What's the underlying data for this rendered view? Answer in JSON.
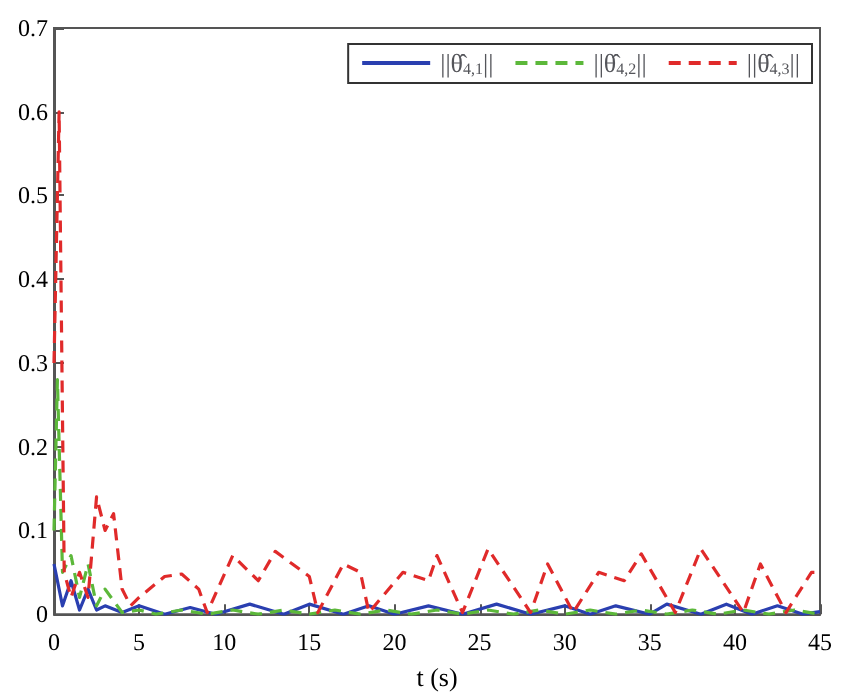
{
  "chart_data": {
    "type": "line",
    "xlabel": "t (s)",
    "xlim": [
      0,
      45
    ],
    "xticks": [
      0,
      5,
      10,
      15,
      20,
      25,
      30,
      35,
      40,
      45
    ],
    "ylim": [
      0,
      0.7
    ],
    "yticks": [
      0,
      0.1,
      0.2,
      0.3,
      0.4,
      0.5,
      0.6,
      0.7
    ],
    "grid": false,
    "legend": "top right",
    "marker": "none",
    "series": [
      {
        "name": "||θ̂$_{4,1}$||",
        "color": "#2a3fb0",
        "line_style": "solid",
        "x": [
          0,
          0.5,
          1,
          1.5,
          2,
          2.5,
          3,
          4,
          5,
          6.5,
          8,
          9.5,
          11.5,
          13.5,
          15,
          17,
          18.5,
          20,
          22,
          24,
          26,
          28,
          30,
          31.5,
          33,
          35,
          36,
          38,
          39.5,
          41,
          42.5,
          44,
          45
        ],
        "values": [
          0.06,
          0.01,
          0.04,
          0.005,
          0.03,
          0.005,
          0.01,
          0.002,
          0.01,
          0,
          0.008,
          0,
          0.012,
          0,
          0.012,
          0,
          0.01,
          0,
          0.01,
          0,
          0.012,
          0,
          0.01,
          0,
          0.01,
          0,
          0.012,
          0,
          0.012,
          0,
          0.01,
          0,
          0.003
        ]
      },
      {
        "name": "||θ̂$_{4,2}$||",
        "color": "#5cb83a",
        "line_style": "dashed",
        "x": [
          0,
          0.2,
          0.5,
          1,
          1.5,
          2,
          2.5,
          3,
          4,
          5,
          6,
          7.5,
          9,
          10.5,
          12,
          13.5,
          15,
          16.5,
          18,
          19.5,
          21,
          22.5,
          24,
          25.5,
          27,
          28.5,
          30,
          31.5,
          33,
          34.5,
          36,
          37.5,
          39,
          40.5,
          42,
          43.5,
          45
        ],
        "values": [
          0.1,
          0.28,
          0.05,
          0.07,
          0.02,
          0.06,
          0.01,
          0.03,
          0.002,
          0.005,
          0,
          0.005,
          0,
          0.005,
          0,
          0.005,
          0,
          0.005,
          0,
          0.005,
          0,
          0.005,
          0,
          0.005,
          0,
          0.005,
          0,
          0.005,
          0,
          0.005,
          0,
          0.005,
          0,
          0.005,
          0,
          0.005,
          0
        ]
      },
      {
        "name": "||θ̂$_{4,3}$||",
        "color": "#e02a2a",
        "line_style": "dashed",
        "x": [
          0,
          0.3,
          0.6,
          1,
          1.5,
          2,
          2.5,
          3,
          3.5,
          4,
          4.5,
          5,
          6.5,
          7.5,
          8.5,
          9,
          10.5,
          12,
          13,
          15,
          15.5,
          17,
          18,
          18.5,
          20.5,
          22,
          22.5,
          24,
          25.5,
          28,
          29,
          30.5,
          32,
          33.5,
          34.5,
          36.5,
          38,
          40.5,
          41.5,
          43,
          44.5,
          45
        ],
        "values": [
          0.3,
          0.6,
          0.05,
          0.02,
          0.05,
          0.02,
          0.14,
          0.1,
          0.12,
          0.03,
          0.01,
          0.02,
          0.045,
          0.048,
          0.03,
          0.002,
          0.07,
          0.04,
          0.075,
          0.045,
          0.002,
          0.06,
          0.05,
          0.002,
          0.05,
          0.04,
          0.07,
          0.002,
          0.078,
          0.002,
          0.06,
          0.002,
          0.05,
          0.04,
          0.072,
          0.002,
          0.078,
          0.002,
          0.06,
          0.002,
          0.05,
          0.05
        ]
      }
    ]
  }
}
